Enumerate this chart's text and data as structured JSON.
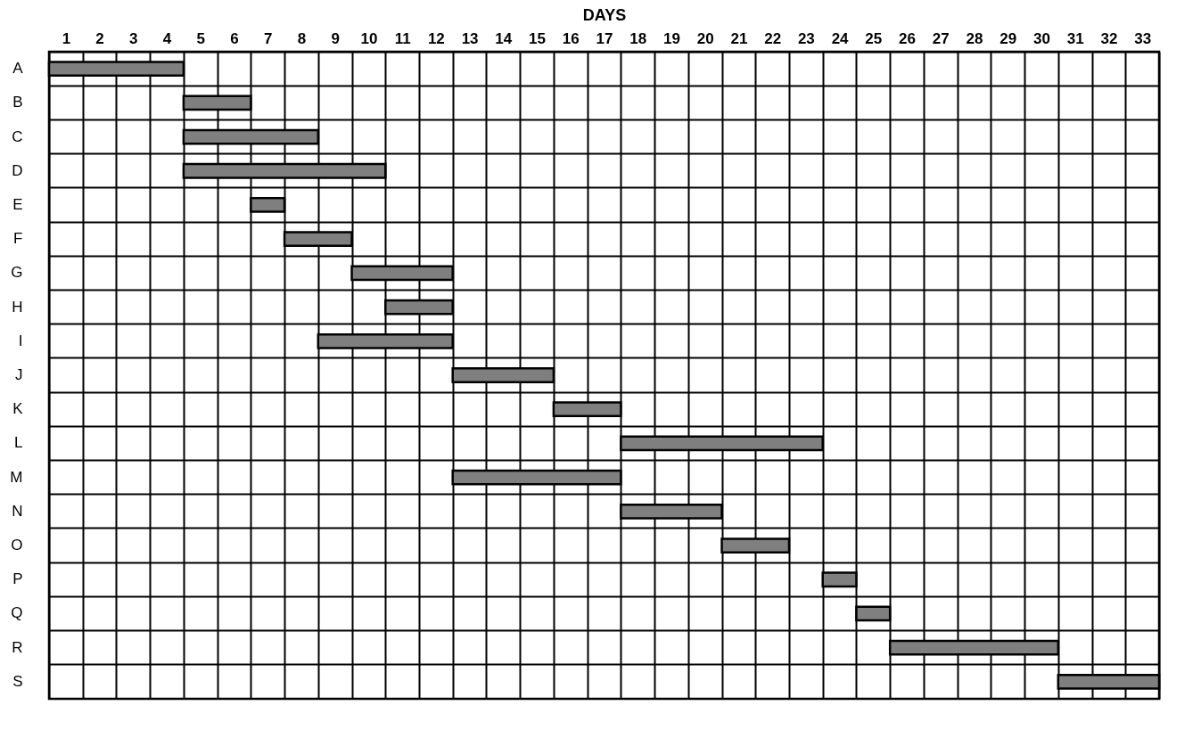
{
  "chart_data": {
    "type": "bar",
    "orientation": "horizontal",
    "xlabel": "DAYS",
    "categories": [
      "A",
      "B",
      "C",
      "D",
      "E",
      "F",
      "G",
      "H",
      "I",
      "J",
      "K",
      "L",
      "M",
      "N",
      "O",
      "P",
      "Q",
      "R",
      "S"
    ],
    "base": [
      0,
      4,
      4,
      4,
      6,
      7,
      9,
      10,
      8,
      12,
      15,
      17,
      12,
      17,
      20,
      23,
      24,
      25,
      30
    ],
    "values": [
      4,
      2,
      4,
      6,
      1,
      2,
      3,
      2,
      4,
      3,
      2,
      6,
      5,
      3,
      2,
      1,
      1,
      5,
      3
    ],
    "color": "#7f7f7f",
    "grid": true,
    "xlim": [
      0,
      33
    ],
    "xticks": [
      {
        "value": 0.5,
        "label": "1"
      },
      {
        "value": 1.5,
        "label": "2"
      },
      {
        "value": 2.5,
        "label": "3"
      },
      {
        "value": 3.5,
        "label": "4"
      },
      {
        "value": 4.5,
        "label": "5"
      },
      {
        "value": 5.5,
        "label": "6"
      },
      {
        "value": 6.5,
        "label": "7"
      },
      {
        "value": 7.5,
        "label": "8"
      },
      {
        "value": 8.5,
        "label": "9"
      },
      {
        "value": 9.5,
        "label": "10"
      },
      {
        "value": 10.5,
        "label": "11"
      },
      {
        "value": 11.5,
        "label": "12"
      },
      {
        "value": 12.5,
        "label": "13"
      },
      {
        "value": 13.5,
        "label": "14"
      },
      {
        "value": 14.5,
        "label": "15"
      },
      {
        "value": 15.5,
        "label": "16"
      },
      {
        "value": 16.5,
        "label": "17"
      },
      {
        "value": 17.5,
        "label": "18"
      },
      {
        "value": 18.5,
        "label": "19"
      },
      {
        "value": 19.5,
        "label": "20"
      },
      {
        "value": 20.5,
        "label": "21"
      },
      {
        "value": 21.5,
        "label": "22"
      },
      {
        "value": 22.5,
        "label": "23"
      },
      {
        "value": 23.5,
        "label": "24"
      },
      {
        "value": 24.5,
        "label": "25"
      },
      {
        "value": 25.5,
        "label": "26"
      },
      {
        "value": 26.5,
        "label": "27"
      },
      {
        "value": 27.5,
        "label": "28"
      },
      {
        "value": 28.5,
        "label": "29"
      },
      {
        "value": 29.5,
        "label": "30"
      },
      {
        "value": 30.5,
        "label": "31"
      },
      {
        "value": 31.5,
        "label": "32"
      },
      {
        "value": 32.5,
        "label": "33"
      }
    ]
  }
}
